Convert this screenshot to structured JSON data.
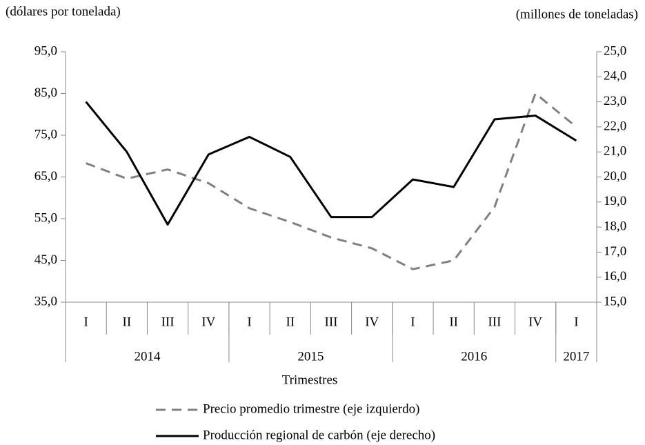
{
  "chart_data": {
    "type": "line",
    "y_label": "(dólares por tonelada)",
    "y2_label": "(millones  de toneladas)",
    "x_label": "Trimestres",
    "categories": [
      "I",
      "II",
      "III",
      "IV",
      "I",
      "II",
      "III",
      "IV",
      "I",
      "II",
      "III",
      "IV",
      "I"
    ],
    "groups": [
      {
        "name": "2014",
        "count": 4
      },
      {
        "name": "2015",
        "count": 4
      },
      {
        "name": "2016",
        "count": 4
      },
      {
        "name": "2017",
        "count": 1
      }
    ],
    "series": [
      {
        "name": "Precio promedio trimestre (eje izquierdo)",
        "color": "#808080",
        "dash": true,
        "values": [
          68.3,
          64.6,
          66.8,
          63.5,
          57.5,
          54.2,
          50.5,
          47.9,
          42.9,
          45.0,
          57.8,
          85.0,
          77.0
        ]
      },
      {
        "name": "Producción regional de carbón (eje derecho)",
        "color": "#000000",
        "axis": "y2",
        "values": [
          23.0,
          21.0,
          18.1,
          20.9,
          21.6,
          20.8,
          18.4,
          18.4,
          19.9,
          19.6,
          22.3,
          22.45,
          21.45
        ]
      }
    ],
    "ylim": [
      35,
      95
    ],
    "yticks": [
      {
        "value": 35,
        "label": "35,0"
      },
      {
        "value": 45,
        "label": "45,0"
      },
      {
        "value": 55,
        "label": "55,0"
      },
      {
        "value": 65,
        "label": "65,0"
      },
      {
        "value": 75,
        "label": "75,0"
      },
      {
        "value": 85,
        "label": "85,0"
      },
      {
        "value": 95,
        "label": "95,0"
      }
    ],
    "y2lim": [
      15,
      25
    ],
    "y2ticks": [
      {
        "value": 15,
        "label": "15,0"
      },
      {
        "value": 16,
        "label": "16,0"
      },
      {
        "value": 17,
        "label": "17,0"
      },
      {
        "value": 18,
        "label": "18,0"
      },
      {
        "value": 19,
        "label": "19,0"
      },
      {
        "value": 20,
        "label": "20,0"
      },
      {
        "value": 21,
        "label": "21,0"
      },
      {
        "value": 22,
        "label": "22,0"
      },
      {
        "value": 23,
        "label": "23,0"
      },
      {
        "value": 24,
        "label": "24,0"
      },
      {
        "value": 25,
        "label": "25,0"
      }
    ],
    "legend": "bottom"
  }
}
